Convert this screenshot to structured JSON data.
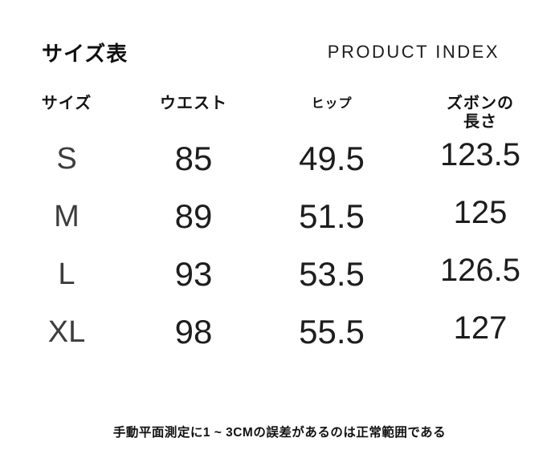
{
  "page": {
    "background_color": "#ffffff",
    "text_color": "#1f1f1f"
  },
  "header": {
    "title": "サイズ表",
    "product_index": "PRODUCT INDEX"
  },
  "table": {
    "columns": [
      {
        "key": "size",
        "label": "サイズ"
      },
      {
        "key": "waist",
        "label": "ウエスト"
      },
      {
        "key": "hip",
        "label": "ヒップ"
      },
      {
        "key": "length",
        "label": "ズボンの\n長さ"
      }
    ],
    "rows": [
      {
        "size": "S",
        "waist": "85",
        "hip": "49.5",
        "length": "123.5"
      },
      {
        "size": "M",
        "waist": "89",
        "hip": "51.5",
        "length": "125"
      },
      {
        "size": "L",
        "waist": "93",
        "hip": "53.5",
        "length": "126.5"
      },
      {
        "size": "XL",
        "waist": "98",
        "hip": "55.5",
        "length": "127"
      }
    ]
  },
  "footer": {
    "note": "手動平面測定に1 ~ 3CMの誤差があるのは正常範囲である"
  }
}
